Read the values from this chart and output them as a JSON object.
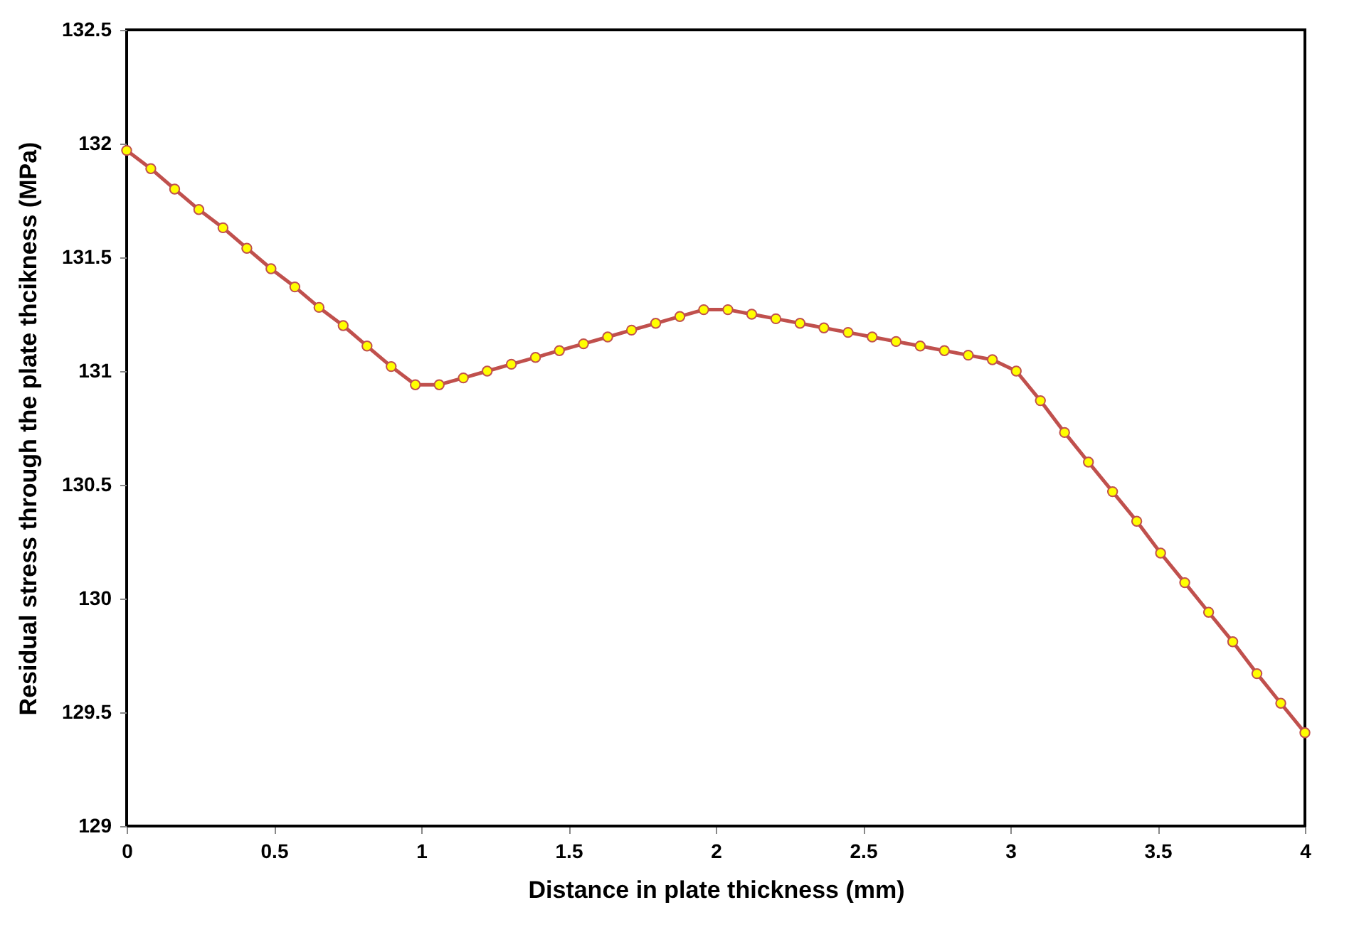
{
  "chart_data": {
    "type": "line",
    "xlabel": "Distance in plate thickness (mm)",
    "ylabel": "Residual stress  through the plate thcikness (MPa)",
    "x": [
      0,
      0.082,
      0.163,
      0.245,
      0.327,
      0.408,
      0.49,
      0.571,
      0.653,
      0.735,
      0.816,
      0.898,
      0.98,
      1.061,
      1.143,
      1.224,
      1.306,
      1.388,
      1.469,
      1.551,
      1.633,
      1.714,
      1.796,
      1.878,
      1.959,
      2.041,
      2.122,
      2.204,
      2.286,
      2.367,
      2.449,
      2.531,
      2.612,
      2.694,
      2.776,
      2.857,
      2.939,
      3.02,
      3.102,
      3.184,
      3.265,
      3.347,
      3.429,
      3.51,
      3.592,
      3.673,
      3.755,
      3.837,
      3.918,
      4
    ],
    "series": [
      {
        "color": "#c0504d",
        "values": [
          131.97,
          131.89,
          131.8,
          131.71,
          131.63,
          131.54,
          131.45,
          131.37,
          131.28,
          131.2,
          131.11,
          131.02,
          130.94,
          130.94,
          130.97,
          131,
          131.03,
          131.06,
          131.09,
          131.12,
          131.15,
          131.18,
          131.21,
          131.24,
          131.27,
          131.27,
          131.25,
          131.23,
          131.21,
          131.19,
          131.17,
          131.15,
          131.13,
          131.11,
          131.09,
          131.07,
          131.05,
          131,
          130.87,
          130.73,
          130.6,
          130.47,
          130.34,
          130.2,
          130.07,
          129.94,
          129.81,
          129.67,
          129.54,
          129.41
        ]
      }
    ],
    "xlim": [
      0,
      4
    ],
    "xticks": [
      0,
      0.5,
      1,
      1.5,
      2,
      2.5,
      3,
      3.5,
      4
    ],
    "ylim": [
      129,
      132.5
    ],
    "yticks": [
      129,
      129.5,
      130,
      130.5,
      131,
      131.5,
      132,
      132.5
    ],
    "grid": false,
    "marker": "circle",
    "line_style": "solid"
  }
}
